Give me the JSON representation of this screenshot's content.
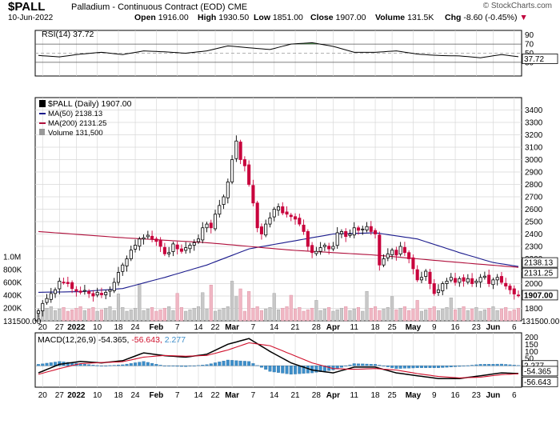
{
  "header": {
    "symbol": "$PALL",
    "description": "Palladium - Continuous Contract (EOD)",
    "exchange": "CME",
    "date": "10-Jun-2022",
    "brand": "© StockCharts.com",
    "open_label": "Open",
    "open": "1916.00",
    "high_label": "High",
    "high": "1930.50",
    "low_label": "Low",
    "low": "1851.00",
    "close_label": "Close",
    "close": "1907.00",
    "volume_label": "Volume",
    "volume": "131.5K",
    "chg_label": "Chg",
    "chg": "-8.60 (-0.45%)",
    "chg_arrow": "▼"
  },
  "colors": {
    "up": "#000000",
    "down": "#c8003c",
    "ma50": "#1a1a8c",
    "ma200": "#b0103c",
    "volume_up": "#c8c8c8",
    "volume_down": "#f0b7c4",
    "macd_hist": "#3d8ec9",
    "rsi_fill": "#3f8a3f",
    "grid": "#d8d8d8"
  },
  "chart_data": [
    {
      "type": "line",
      "title": "RSI(14) 37.72",
      "label": "RSI(14)",
      "last": "37.72",
      "ylim": [
        0,
        100
      ],
      "yticks": [
        "90",
        "70",
        "50",
        "30"
      ],
      "guides": [
        70,
        30
      ],
      "x_index": [
        0,
        5,
        10,
        15,
        20,
        25,
        30,
        35,
        40,
        45,
        50,
        55,
        60,
        65,
        70,
        75,
        80,
        85,
        90,
        95,
        100,
        105,
        110,
        115,
        120
      ],
      "values": [
        45,
        42,
        48,
        52,
        47,
        55,
        53,
        50,
        55,
        66,
        62,
        58,
        70,
        73,
        65,
        52,
        52,
        55,
        48,
        45,
        44,
        40,
        47,
        41,
        37.72
      ]
    },
    {
      "type": "candlestick",
      "title": "$PALL (Daily) 1907.00",
      "label": "$PALL (Daily)",
      "last": "1907.00",
      "ylim": [
        1700,
        3500
      ],
      "yticks": [
        "3400",
        "3300",
        "3200",
        "3100",
        "3000",
        "2900",
        "2800",
        "2700",
        "2600",
        "2500",
        "2400",
        "2300",
        "2200",
        "2100",
        "2000",
        "1900",
        "1800"
      ],
      "xticks": [
        "20",
        "27",
        "2022",
        "10",
        "18",
        "24",
        "Feb",
        "7",
        "14",
        "22",
        "Mar",
        "7",
        "14",
        "21",
        "28",
        "Apr",
        "11",
        "18",
        "25",
        "May",
        "9",
        "16",
        "23",
        "Jun",
        "6"
      ],
      "xtick_index": [
        1,
        5,
        9,
        14,
        19,
        23,
        28,
        33,
        38,
        42,
        46,
        51,
        56,
        61,
        66,
        70,
        75,
        80,
        84,
        89,
        94,
        99,
        104,
        108,
        113
      ],
      "closes": [
        1780,
        1840,
        1880,
        1920,
        1950,
        2020,
        2010,
        2000,
        1960,
        1940,
        1930,
        1945,
        1920,
        1900,
        1930,
        1910,
        1930,
        1950,
        2010,
        2090,
        2150,
        2200,
        2270,
        2310,
        2360,
        2370,
        2390,
        2360,
        2340,
        2300,
        2240,
        2250,
        2320,
        2280,
        2260,
        2290,
        2310,
        2330,
        2360,
        2450,
        2480,
        2450,
        2560,
        2630,
        2700,
        2820,
        3000,
        3150,
        3000,
        2950,
        2800,
        2650,
        2450,
        2400,
        2480,
        2530,
        2600,
        2620,
        2570,
        2560,
        2540,
        2520,
        2480,
        2420,
        2300,
        2250,
        2260,
        2290,
        2310,
        2280,
        2300,
        2410,
        2420,
        2380,
        2400,
        2450,
        2430,
        2440,
        2460,
        2420,
        2400,
        2150,
        2200,
        2240,
        2270,
        2230,
        2300,
        2250,
        2200,
        2120,
        2030,
        2050,
        2100,
        2000,
        1920,
        1950,
        2000,
        2020,
        2050,
        2010,
        2040,
        2020,
        2040,
        2000,
        2020,
        2050,
        2060,
        2000,
        2030,
        2050,
        2010,
        1980,
        1950,
        1916,
        1907
      ],
      "series": [
        {
          "name": "MA(50) 2138.13",
          "label": "MA(50)",
          "last": "2138.13",
          "x_index": [
            0,
            10,
            20,
            30,
            40,
            50,
            60,
            70,
            80,
            90,
            100,
            108,
            114
          ],
          "values": [
            1930,
            1935,
            1960,
            2050,
            2150,
            2280,
            2340,
            2400,
            2410,
            2360,
            2250,
            2170,
            2138.13
          ]
        },
        {
          "name": "MA(200) 2131.25",
          "label": "MA(200)",
          "last": "2131.25",
          "x_index": [
            0,
            20,
            40,
            60,
            80,
            100,
            114
          ],
          "values": [
            2420,
            2370,
            2330,
            2270,
            2230,
            2170,
            2131.25
          ]
        }
      ],
      "last_labels": [
        "2138.13",
        "2131.25",
        "1907.00"
      ]
    },
    {
      "type": "bar",
      "title": "Volume 131,500",
      "label": "Volume",
      "last": "131,500",
      "ylim": [
        0,
        1200000
      ],
      "yticks": [
        "1.0M",
        "800K",
        "600K",
        "400K",
        "200K"
      ],
      "last_label": "131500.00",
      "spike_index": [
        19,
        24,
        33,
        39,
        41,
        46,
        47,
        48,
        50,
        56,
        60,
        66,
        78,
        84,
        90,
        98
      ],
      "spike_values": [
        420000,
        580000,
        430000,
        440000,
        560000,
        620000,
        380000,
        500000,
        460000,
        430000,
        400000,
        320000,
        460000,
        380000,
        320000,
        360000
      ],
      "base_volume": 150000
    },
    {
      "type": "line",
      "title": "MACD(12,26,9) -54.365, -56.643, 2.277",
      "label": "MACD(12,26,9)",
      "values_text": [
        "-54.365",
        "-56.643",
        "2.277"
      ],
      "ylim": [
        -150,
        230
      ],
      "yticks": [
        "200",
        "150",
        "100",
        "50",
        "-50",
        "-100"
      ],
      "series": [
        {
          "name": "MACD",
          "x_index": [
            0,
            5,
            10,
            15,
            20,
            25,
            30,
            35,
            40,
            45,
            50,
            55,
            60,
            65,
            70,
            75,
            80,
            85,
            90,
            95,
            100,
            105,
            110,
            114
          ],
          "values": [
            -50,
            10,
            30,
            20,
            35,
            90,
            70,
            60,
            80,
            150,
            190,
            100,
            20,
            -30,
            -50,
            -10,
            -10,
            -50,
            -70,
            -90,
            -90,
            -70,
            -50,
            -54.365
          ]
        },
        {
          "name": "Signal",
          "x_index": [
            0,
            5,
            10,
            15,
            20,
            25,
            30,
            35,
            40,
            45,
            50,
            55,
            60,
            65,
            70,
            75,
            80,
            85,
            90,
            95,
            100,
            105,
            110,
            114
          ],
          "values": [
            -60,
            -20,
            15,
            22,
            28,
            60,
            72,
            66,
            72,
            110,
            160,
            140,
            80,
            20,
            -20,
            -25,
            -20,
            -30,
            -55,
            -75,
            -85,
            -80,
            -62,
            -56.643
          ]
        }
      ],
      "last_labels": [
        "2.277",
        "-54.365",
        "-56.643"
      ]
    }
  ]
}
